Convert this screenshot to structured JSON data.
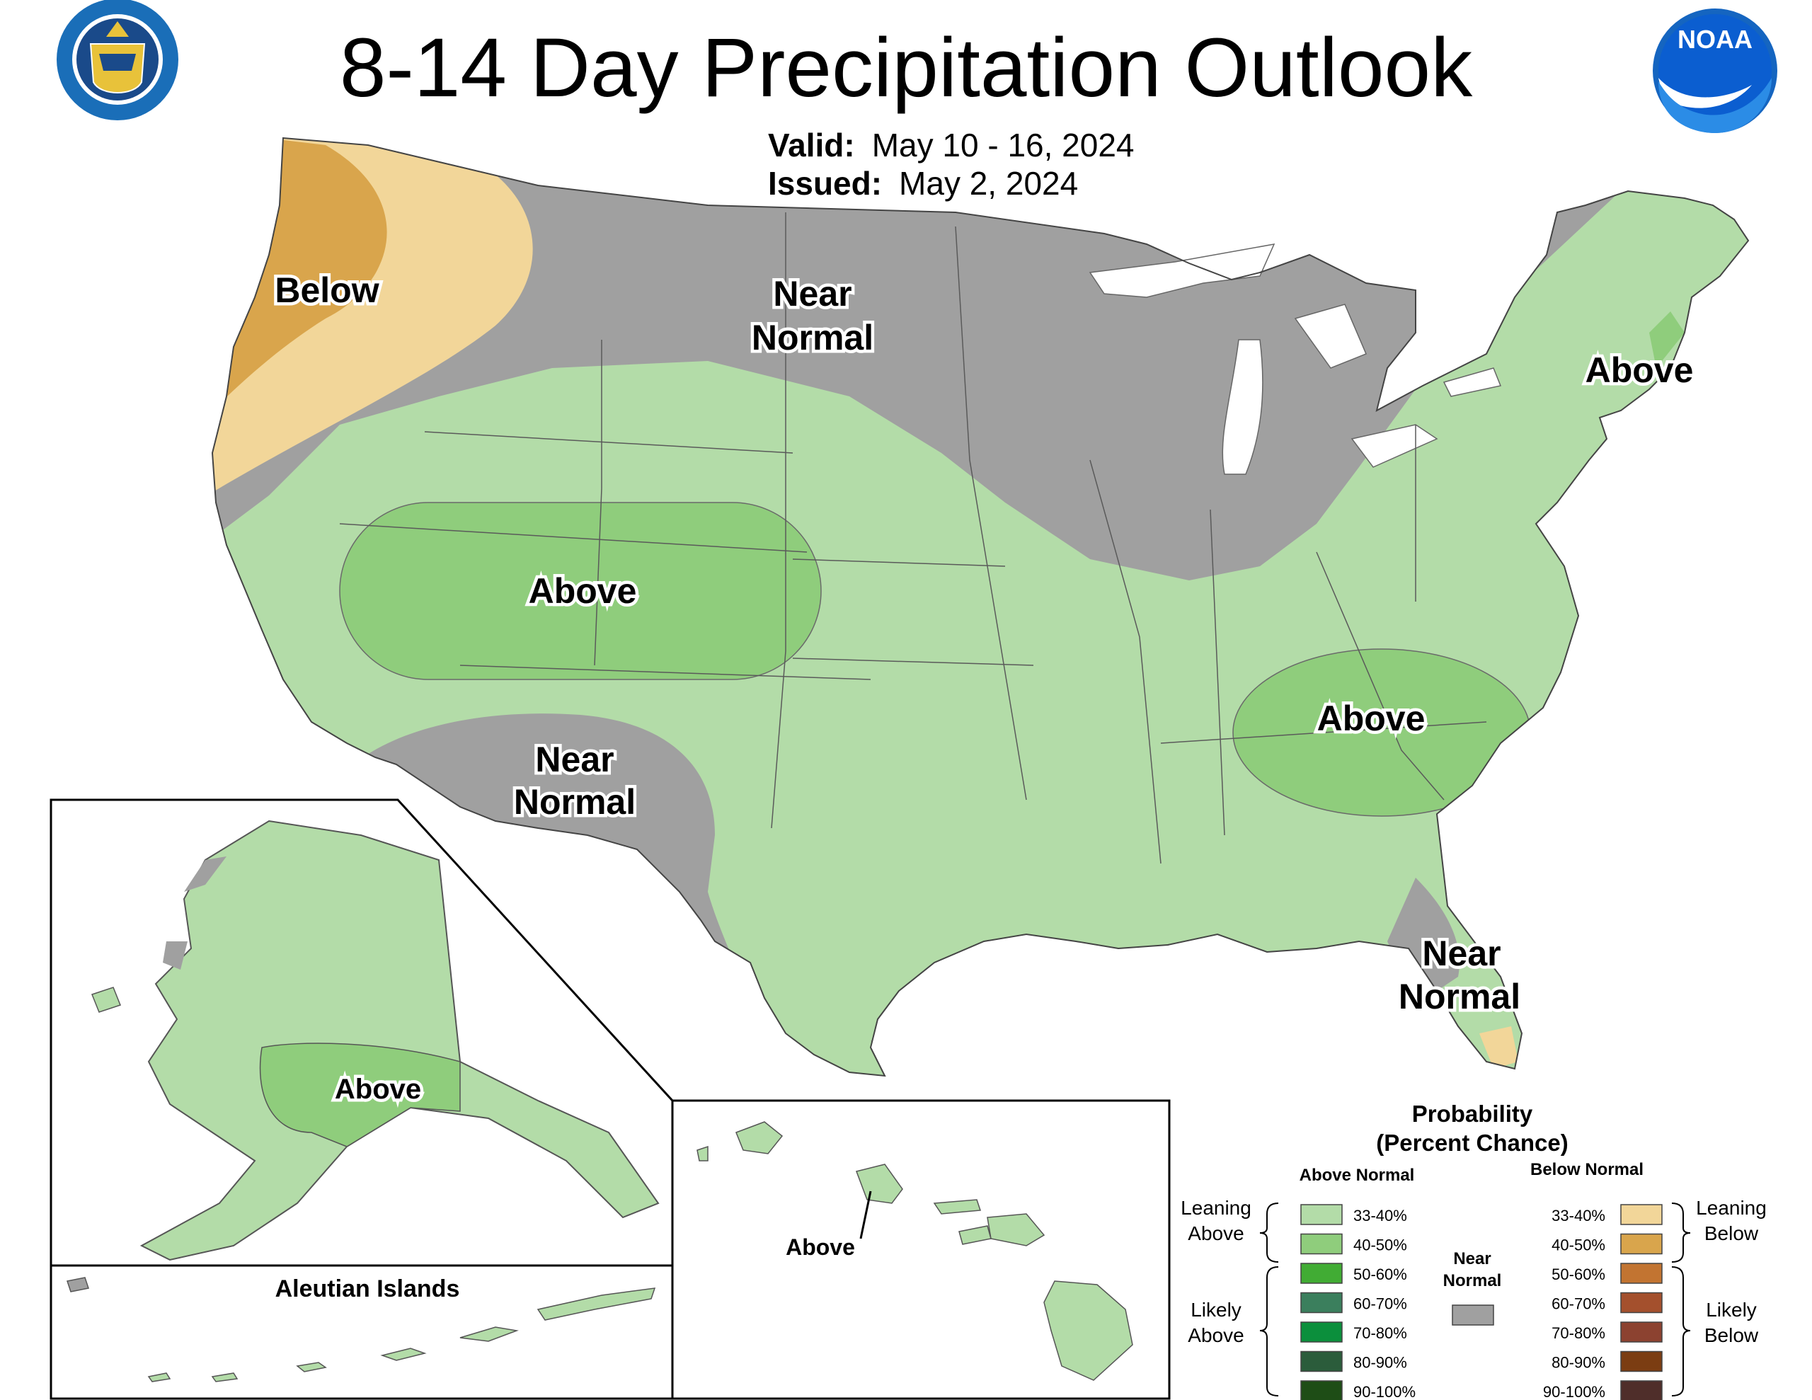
{
  "header": {
    "title": "8-14 Day Precipitation Outlook",
    "valid_label": "Valid:",
    "valid_value": "May 10 - 16, 2024",
    "issued_label": "Issued:",
    "issued_value": "May 2, 2024"
  },
  "logos": {
    "commerce_seal_text": "DEPARTMENT OF COMMERCE · UNITED STATES OF AMERICA",
    "noaa_text": "NOAA"
  },
  "colors": {
    "leaning_above": "#b3dca8",
    "above_40_50": "#8fcd7c",
    "near_normal": "#a0a0a0",
    "leaning_below": "#f2d699",
    "below_40_50": "#d9a54c",
    "likely_above": [
      "#41ac34",
      "#3b7f5d",
      "#0b8f3c",
      "#2b5c3b",
      "#1e4d16"
    ],
    "likely_below": [
      "#c27431",
      "#a4502d",
      "#8c4230",
      "#7b3d12",
      "#4f2e2a"
    ]
  },
  "map_labels": {
    "below_northwest": "Below",
    "near_normal_north": [
      "Near",
      "Normal"
    ],
    "above_northeast": "Above",
    "above_rockies": "Above",
    "above_southeast": "Above",
    "near_normal_southwest": [
      "Near",
      "Normal"
    ],
    "near_normal_florida": [
      "Near",
      "Normal"
    ],
    "above_alaska": "Above",
    "aleutian_title": "Aleutian Islands",
    "above_hawaii": "Above"
  },
  "legend": {
    "title_line1": "Probability",
    "title_line2": "(Percent Chance)",
    "above_header": "Above Normal",
    "below_header": "Below Normal",
    "near_normal": [
      "Near",
      "Normal"
    ],
    "leaning_above": [
      "Leaning",
      "Above"
    ],
    "likely_above": [
      "Likely",
      "Above"
    ],
    "leaning_below": [
      "Leaning",
      "Below"
    ],
    "likely_below": [
      "Likely",
      "Below"
    ],
    "ranges": [
      "33-40%",
      "40-50%",
      "50-60%",
      "60-70%",
      "70-80%",
      "80-90%",
      "90-100%"
    ]
  }
}
